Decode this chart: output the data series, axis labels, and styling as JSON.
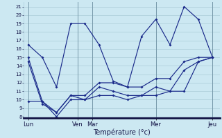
{
  "background_color": "#cce8f2",
  "grid_color": "#aaccd8",
  "line_color": "#1a2a8a",
  "xlabel": "Température (°c)",
  "series1_x": [
    0,
    1,
    2,
    3,
    4,
    5,
    6,
    7,
    8,
    9,
    10,
    11,
    12,
    13
  ],
  "series1_y": [
    16.5,
    15.0,
    11.5,
    19.0,
    19.0,
    16.5,
    12.2,
    11.5,
    17.5,
    19.5,
    16.5,
    21.0,
    19.5,
    15.0
  ],
  "series2_x": [
    0,
    1,
    2,
    3,
    4,
    5,
    6,
    7,
    8,
    9,
    10,
    11,
    12,
    13
  ],
  "series2_y": [
    15.0,
    9.8,
    8.5,
    10.5,
    10.5,
    12.0,
    12.0,
    11.5,
    11.5,
    12.5,
    12.5,
    14.5,
    15.0,
    15.0
  ],
  "series3_x": [
    0,
    1,
    2,
    3,
    4,
    5,
    6,
    7,
    8,
    9,
    10,
    11,
    12,
    13
  ],
  "series3_y": [
    14.5,
    9.5,
    8.5,
    10.5,
    10.0,
    11.5,
    11.0,
    10.5,
    10.5,
    11.5,
    11.0,
    13.5,
    14.5,
    15.0
  ],
  "series4_x": [
    0,
    1,
    2,
    3,
    4,
    5,
    6,
    7,
    8,
    9,
    10,
    11,
    12,
    13
  ],
  "series4_y": [
    9.8,
    9.8,
    8.0,
    10.0,
    10.0,
    10.5,
    10.5,
    10.0,
    10.5,
    10.5,
    11.0,
    11.0,
    14.5,
    15.0
  ],
  "day_positions": [
    0,
    3.5,
    4.5,
    9.0,
    13.0
  ],
  "day_labels": [
    "Lun",
    "Ven",
    "Mar",
    "Mer",
    "Jeu"
  ],
  "yticks": [
    8,
    9,
    10,
    11,
    12,
    13,
    14,
    15,
    16,
    17,
    18,
    19,
    20,
    21
  ],
  "xlim": [
    -0.3,
    13.5
  ],
  "ylim": [
    7.8,
    21.5
  ]
}
